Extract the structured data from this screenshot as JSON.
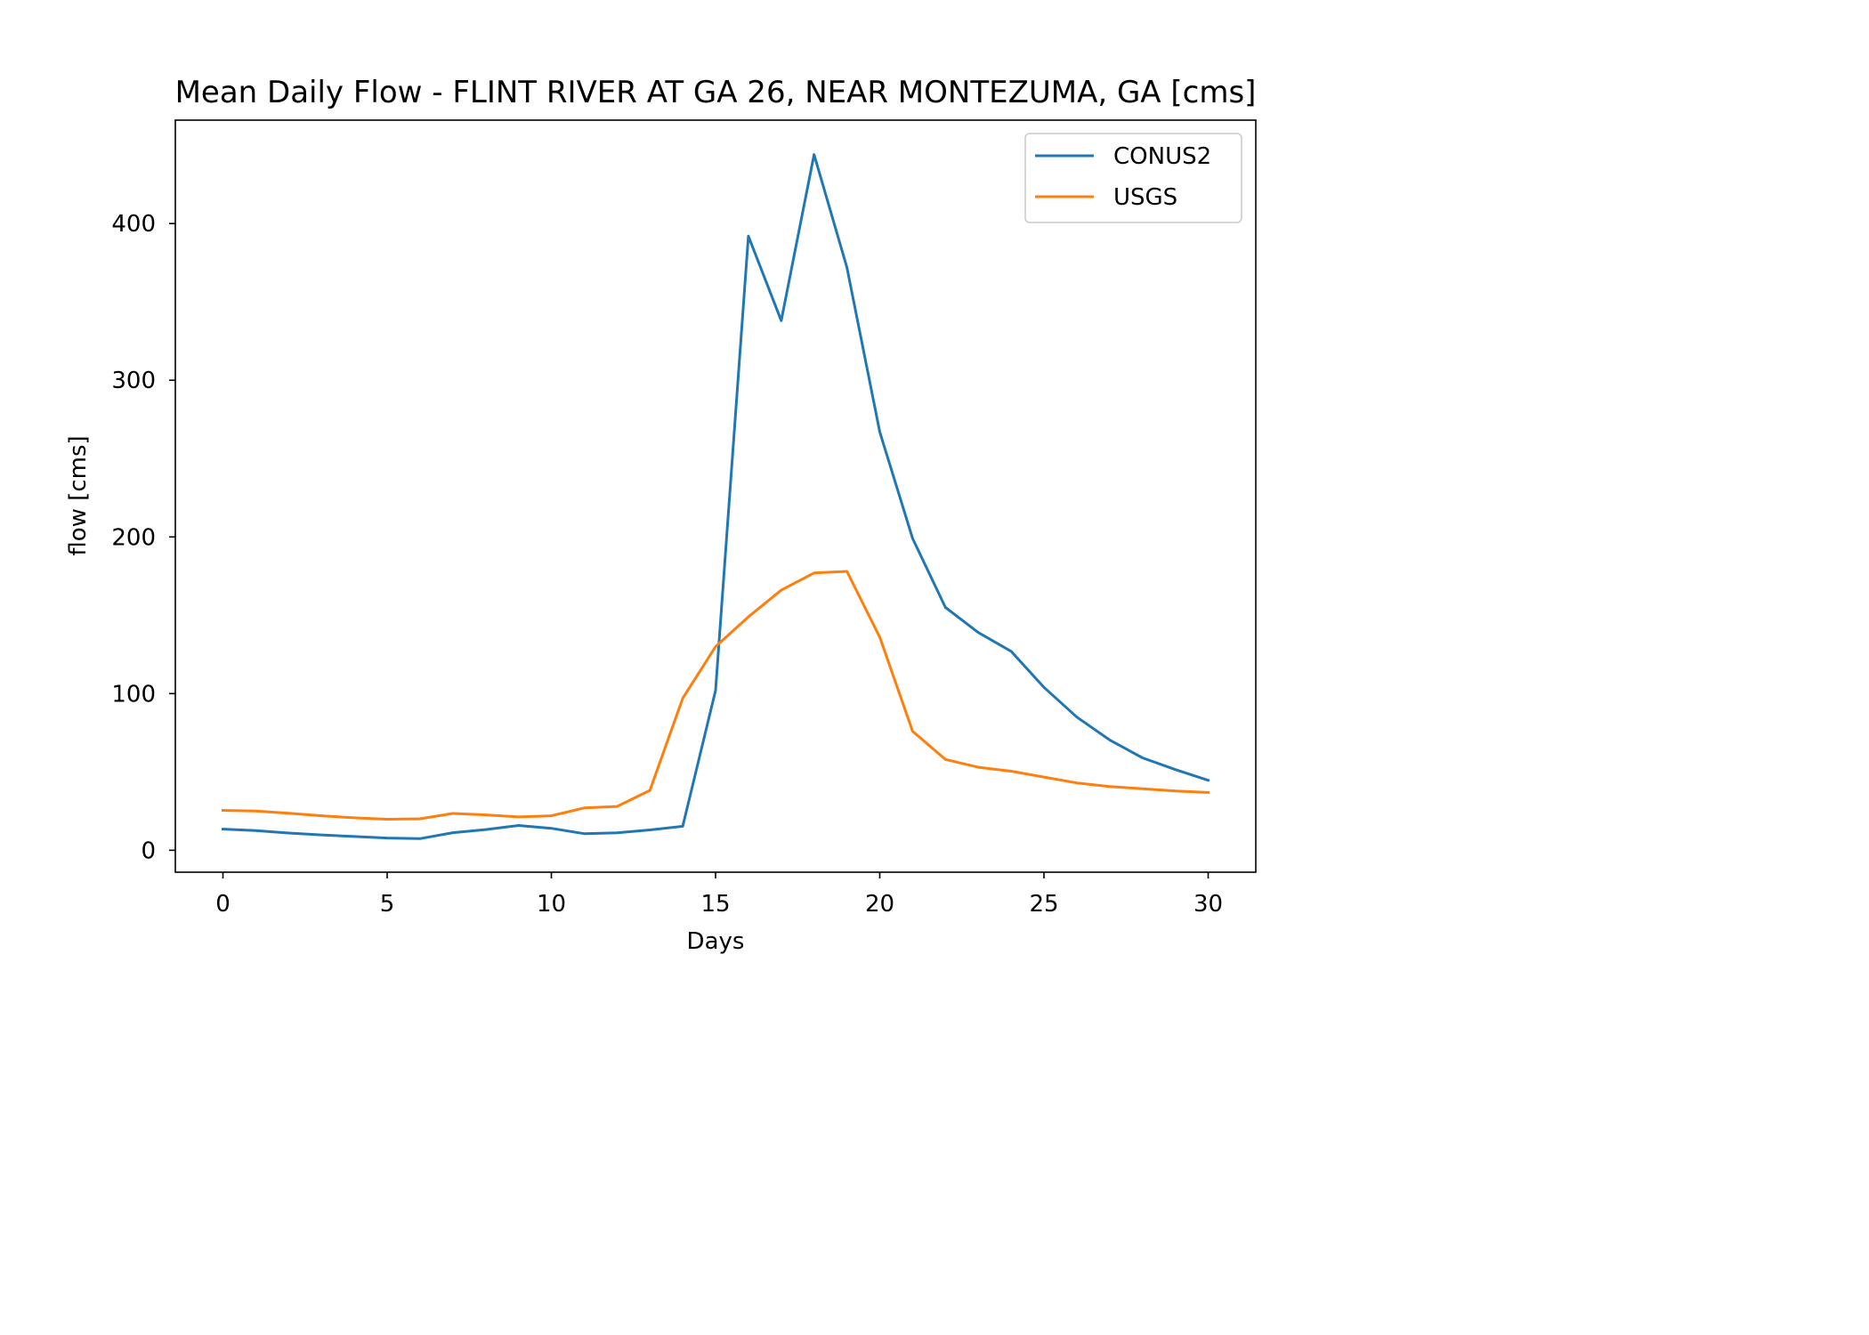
{
  "chart_data": {
    "type": "line",
    "title": "Mean Daily Flow - FLINT RIVER AT GA 26, NEAR MONTEZUMA, GA [cms]",
    "xlabel": "Days",
    "ylabel": "flow [cms]",
    "xlim": [
      -1.45,
      31.45
    ],
    "ylim": [
      -14,
      466
    ],
    "xticks": [
      0,
      5,
      10,
      15,
      20,
      25,
      30
    ],
    "yticks": [
      0,
      100,
      200,
      300,
      400
    ],
    "grid": false,
    "legend_position": "top-right",
    "x": [
      0,
      1,
      2,
      3,
      4,
      5,
      6,
      7,
      8,
      9,
      10,
      11,
      12,
      13,
      14,
      15,
      16,
      17,
      18,
      19,
      20,
      21,
      22,
      23,
      24,
      25,
      26,
      27,
      28,
      29,
      30
    ],
    "series": [
      {
        "name": "CONUS2",
        "color": "#1f77b4",
        "values": [
          13.5,
          12.5,
          11,
          9.8,
          8.8,
          7.8,
          7.4,
          11.2,
          13.2,
          15.8,
          14,
          10.6,
          11.1,
          13,
          15.3,
          102,
          392,
          338,
          444,
          372,
          267,
          199,
          155,
          139,
          127,
          104,
          85,
          70.4,
          59,
          51.5,
          44.7
        ]
      },
      {
        "name": "USGS",
        "color": "#ff7f0e",
        "values": [
          25.5,
          25.1,
          23.6,
          22,
          20.7,
          19.8,
          20.1,
          23.5,
          22.6,
          21.3,
          22,
          27,
          28,
          38.2,
          97,
          130,
          149,
          166,
          177,
          178,
          136,
          76,
          58,
          53,
          50.5,
          46.7,
          43,
          40.7,
          39.3,
          37.8,
          36.9
        ]
      }
    ]
  }
}
